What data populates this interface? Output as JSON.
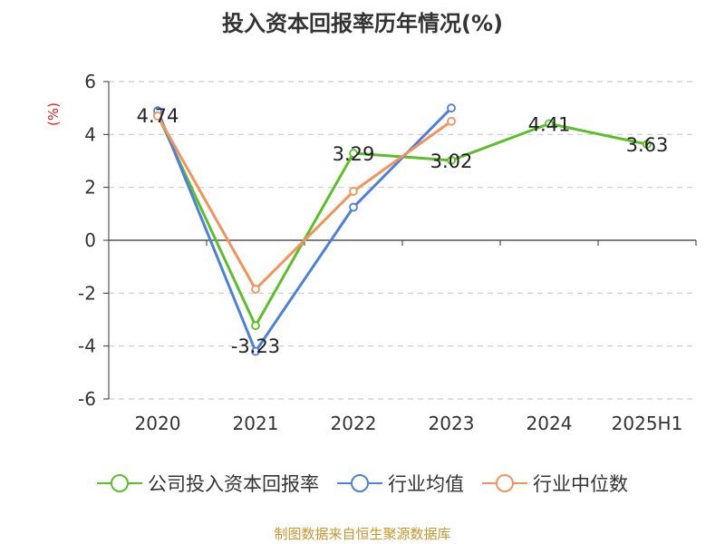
{
  "title": "投入资本回报率历年情况(%)",
  "source": "制图数据来自恒生聚源数据库",
  "chart_data": {
    "type": "line",
    "title": "投入资本回报率历年情况(%)",
    "ylabel": "(%)",
    "categories": [
      "2020",
      "2021",
      "2022",
      "2023",
      "2024",
      "2025H1"
    ],
    "ylim": [
      -6,
      6
    ],
    "yticks": [
      6,
      4,
      2,
      0,
      -2,
      -4,
      -6
    ],
    "grid": true,
    "legend_position": "bottom",
    "series": [
      {
        "name": "公司投入资本回报率",
        "color": "#5cbf2a",
        "values": [
          4.74,
          -3.23,
          3.29,
          3.02,
          4.41,
          3.63
        ],
        "labels": [
          "4.74",
          "-3.23",
          "3.29",
          "3.02",
          "4.41",
          "3.63"
        ]
      },
      {
        "name": "行业均值",
        "color": "#4d7fdc",
        "values": [
          4.9,
          -4.2,
          1.25,
          5.0,
          null,
          null
        ]
      },
      {
        "name": "行业中位数",
        "color": "#f4925c",
        "values": [
          4.7,
          -1.85,
          1.85,
          4.5,
          null,
          null
        ]
      }
    ]
  }
}
